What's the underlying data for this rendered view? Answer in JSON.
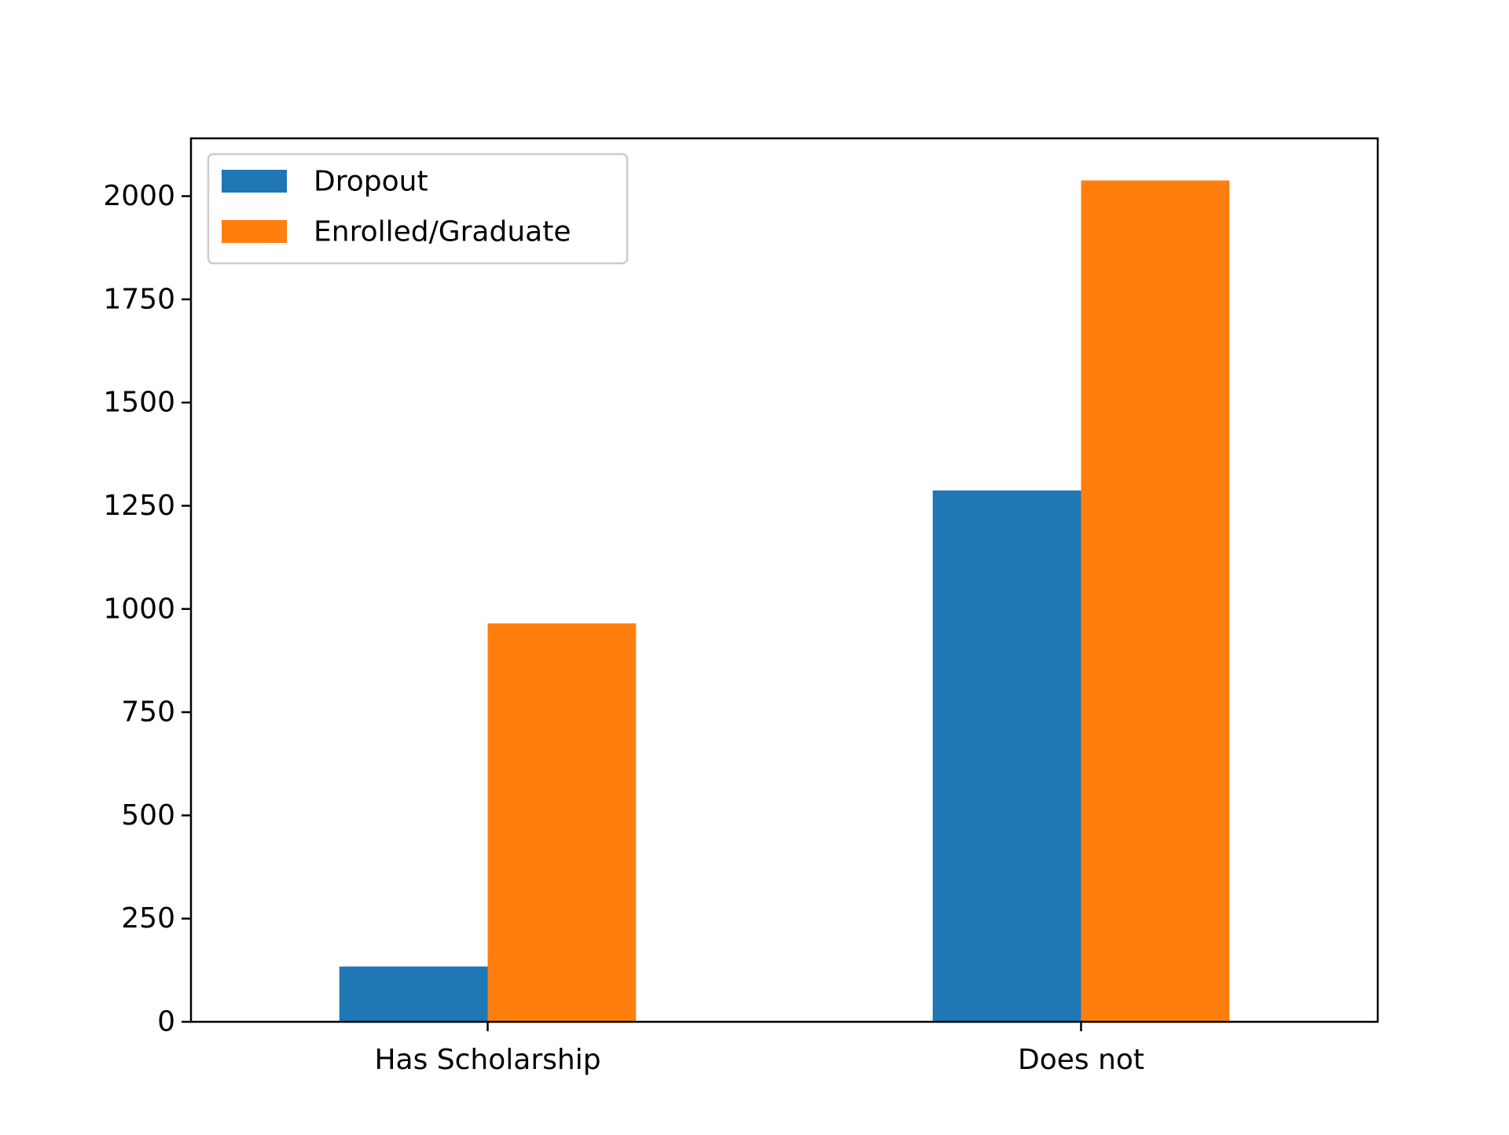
{
  "chart_data": {
    "type": "bar",
    "title": "",
    "xlabel": "",
    "ylabel": "",
    "categories": [
      "Has Scholarship",
      "Does not"
    ],
    "series": [
      {
        "name": "Dropout",
        "color": "#1f77b4",
        "values": [
          134,
          1287
        ]
      },
      {
        "name": "Enrolled/Graduate",
        "color": "#ff7f0e",
        "values": [
          965,
          2038
        ]
      }
    ],
    "ylim": [
      0,
      2140
    ],
    "yticks": [
      0,
      250,
      500,
      750,
      1000,
      1250,
      1500,
      1750,
      2000
    ],
    "grid": false,
    "legend_position": "top-left"
  }
}
